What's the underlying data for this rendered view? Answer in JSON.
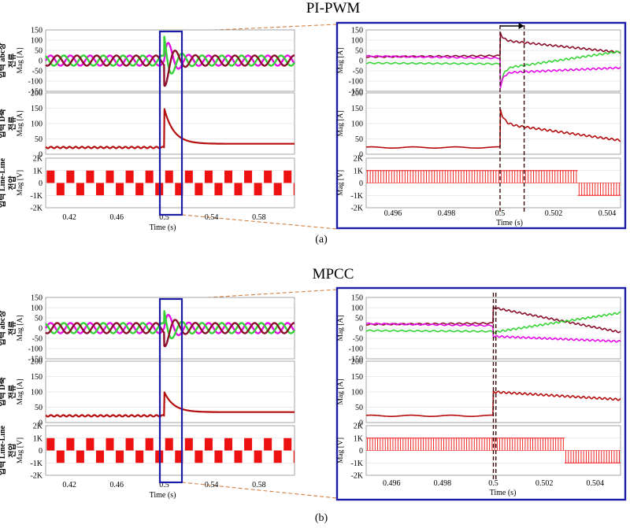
{
  "figure": {
    "captions": [
      "(a)",
      "(b)"
    ]
  },
  "chart_data": [
    {
      "type": "line",
      "title": "PI-PWM",
      "caption": "(a)",
      "overview": {
        "xlabel": "Time (s)",
        "x_ticks": [
          "0.42",
          "0.46",
          "0.5",
          "0.54",
          "0.58"
        ],
        "xlim": [
          0.4,
          0.61
        ],
        "panels": [
          {
            "key": "abc",
            "ylabel": "Mag [A]",
            "korean_label": [
              "입력 abc상",
              "전류"
            ],
            "ylim": [
              -150,
              150
            ],
            "y_ticks": [
              "150",
              "100",
              "50",
              "0",
              "-50",
              "-100",
              "-150"
            ],
            "series": [
              {
                "color": "#e60ee6"
              },
              {
                "color": "#36d436"
              },
              {
                "color": "#8b0f2c"
              }
            ]
          },
          {
            "key": "d",
            "ylabel": "Mag [A]",
            "korean_label": [
              "입력 D축",
              "전류"
            ],
            "ylim": [
              0,
              200
            ],
            "y_ticks": [
              "200",
              "150",
              "100",
              "50",
              "0"
            ],
            "series": [
              {
                "color": "#b50d0d"
              }
            ]
          },
          {
            "key": "vll",
            "ylabel": "Mag [V]",
            "korean_label": [
              "입력 Line-Line",
              "전압"
            ],
            "ylim": [
              -2000,
              2000
            ],
            "y_ticks": [
              "2K",
              "1K",
              "0",
              "-1K",
              "-2K"
            ],
            "series": [
              {
                "color": "#ee1111"
              }
            ]
          }
        ],
        "selection_window": [
          0.497,
          0.508
        ]
      },
      "zoom": {
        "xlabel": "Time (s)",
        "x_ticks": [
          "0.496",
          "0.498",
          "0.5",
          "0.502",
          "0.504"
        ],
        "xlim": [
          0.495,
          0.5045
        ],
        "panels": [
          {
            "key": "abc",
            "ylabel": "Mag [A]",
            "ylim": [
              -150,
              150
            ],
            "y_ticks": [
              "150",
              "100",
              "50",
              "0",
              "-50",
              "-100",
              "-150"
            ]
          },
          {
            "key": "d",
            "ylabel": "Mag [A]",
            "ylim": [
              0,
              200
            ],
            "y_ticks": [
              "200",
              "150",
              "100",
              "50",
              "0"
            ]
          },
          {
            "key": "vll",
            "ylabel": "Mag [V]",
            "ylim": [
              -2000,
              2000
            ],
            "y_ticks": [
              "2K",
              "1K",
              "0",
              "-1K",
              "-2K"
            ]
          }
        ],
        "event_markers_x": [
          0.5,
          0.5009
        ],
        "transition_arrow": [
          0.5,
          0.5009
        ]
      },
      "data": {
        "pre_amplitude": 25,
        "step_time": 0.5,
        "abc_spike_peak": 140,
        "abc_post": [
          {
            "series": "dark-red",
            "start": 100,
            "end": 40
          },
          {
            "series": "green",
            "start": -40,
            "end": 45
          },
          {
            "series": "magenta",
            "start": -60,
            "end": -35
          }
        ],
        "d_pre": 22,
        "d_spike_peak": 150,
        "d_post_start": 100,
        "d_post_end": 45,
        "vll_amplitude": 1000
      }
    },
    {
      "type": "line",
      "title": "MPCC",
      "caption": "(b)",
      "overview": {
        "xlabel": "Time (s)",
        "x_ticks": [
          "0.42",
          "0.46",
          "0.5",
          "0.54",
          "0.58"
        ],
        "xlim": [
          0.4,
          0.61
        ],
        "panels": [
          {
            "key": "abc",
            "ylabel": "Mag [A]",
            "korean_label": [
              "입력 abc상",
              "전류"
            ],
            "ylim": [
              -150,
              150
            ],
            "y_ticks": [
              "150",
              "100",
              "50",
              "0",
              "-50",
              "-100",
              "-150"
            ]
          },
          {
            "key": "d",
            "ylabel": "Mag [A]",
            "korean_label": [
              "입력 D축",
              "전류"
            ],
            "ylim": [
              0,
              200
            ],
            "y_ticks": [
              "200",
              "150",
              "100",
              "50",
              "0"
            ]
          },
          {
            "key": "vll",
            "ylabel": "Mag [V]",
            "korean_label": [
              "입력 Line-Line",
              "전압"
            ],
            "ylim": [
              -2000,
              2000
            ],
            "y_ticks": [
              "2K",
              "1K",
              "0",
              "-1K",
              "-2K"
            ]
          }
        ],
        "selection_window": [
          0.497,
          0.508
        ]
      },
      "zoom": {
        "xlabel": "Time (s)",
        "x_ticks": [
          "0.496",
          "0.498",
          "0.5",
          "0.502",
          "0.504"
        ],
        "xlim": [
          0.495,
          0.505
        ],
        "panels": [
          {
            "key": "abc",
            "ylabel": "Mag [A]",
            "ylim": [
              -150,
              150
            ],
            "y_ticks": [
              "150",
              "100",
              "50",
              "0",
              "-50",
              "-100",
              "-150"
            ]
          },
          {
            "key": "d",
            "ylabel": "Mag [A]",
            "ylim": [
              0,
              200
            ],
            "y_ticks": [
              "200",
              "150",
              "100",
              "50",
              "0"
            ]
          },
          {
            "key": "vll",
            "ylabel": "Mag [V]",
            "ylim": [
              -2000,
              2000
            ],
            "y_ticks": [
              "2K",
              "1K",
              "0",
              "-1K",
              "-2K"
            ]
          }
        ],
        "event_markers_x": [
          0.5,
          0.5001
        ]
      },
      "data": {
        "pre_amplitude": 25,
        "step_time": 0.5,
        "abc_spike_peak": 100,
        "abc_post": [
          {
            "series": "dark-red",
            "start": 100,
            "end": -20
          },
          {
            "series": "green",
            "start": -20,
            "end": 75
          },
          {
            "series": "magenta",
            "start": -40,
            "end": -65
          }
        ],
        "d_pre": 22,
        "d_spike_peak": 100,
        "d_post_start": 100,
        "d_post_end": 75,
        "vll_amplitude": 1000
      }
    }
  ]
}
